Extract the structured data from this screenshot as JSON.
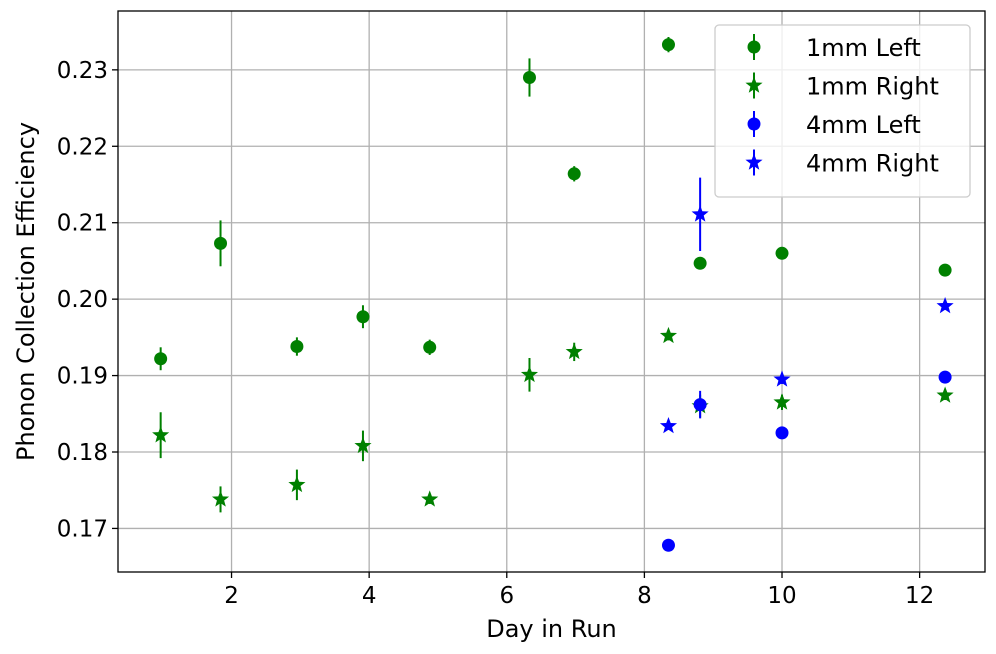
{
  "chart_data": {
    "type": "scatter",
    "title": "",
    "xlabel": "Day in Run",
    "ylabel": "Phonon Collection Efficiency",
    "xlim": [
      0.35,
      12.95
    ],
    "ylim": [
      0.1643,
      0.2377
    ],
    "xticks": [
      2,
      4,
      6,
      8,
      10,
      12
    ],
    "xtick_labels": [
      "2",
      "4",
      "6",
      "8",
      "10",
      "12"
    ],
    "yticks": [
      0.17,
      0.18,
      0.19,
      0.2,
      0.21,
      0.22,
      0.23
    ],
    "ytick_labels": [
      "0.17",
      "0.18",
      "0.19",
      "0.20",
      "0.21",
      "0.22",
      "0.23"
    ],
    "grid": true,
    "legend_position": "top-right",
    "series": [
      {
        "name": "1mm Left",
        "color": "#008000",
        "marker": "circle",
        "points": [
          {
            "x": 0.97,
            "y": 0.1922,
            "err": 0.0015
          },
          {
            "x": 1.84,
            "y": 0.2073,
            "err": 0.003
          },
          {
            "x": 2.95,
            "y": 0.1938,
            "err": 0.0012
          },
          {
            "x": 3.91,
            "y": 0.1977,
            "err": 0.0015
          },
          {
            "x": 4.88,
            "y": 0.1937,
            "err": 0.001
          },
          {
            "x": 6.33,
            "y": 0.229,
            "err": 0.0025
          },
          {
            "x": 6.98,
            "y": 0.2164,
            "err": 0.001
          },
          {
            "x": 8.35,
            "y": 0.2333,
            "err": 0.001
          },
          {
            "x": 8.81,
            "y": 0.2047,
            "err": 0.0004
          },
          {
            "x": 10.0,
            "y": 0.206,
            "err": 0.0006
          },
          {
            "x": 12.37,
            "y": 0.2038,
            "err": 0.0004
          }
        ]
      },
      {
        "name": "1mm Right",
        "color": "#008000",
        "marker": "star",
        "points": [
          {
            "x": 0.97,
            "y": 0.1822,
            "err": 0.003
          },
          {
            "x": 1.84,
            "y": 0.1738,
            "err": 0.0017
          },
          {
            "x": 2.95,
            "y": 0.1757,
            "err": 0.002
          },
          {
            "x": 3.91,
            "y": 0.1808,
            "err": 0.002
          },
          {
            "x": 4.88,
            "y": 0.1738,
            "err": 0.0006
          },
          {
            "x": 6.33,
            "y": 0.1901,
            "err": 0.0022
          },
          {
            "x": 6.98,
            "y": 0.1931,
            "err": 0.0012
          },
          {
            "x": 8.35,
            "y": 0.1952,
            "err": 0.0006
          },
          {
            "x": 8.81,
            "y": 0.186,
            "err": 0.0015
          },
          {
            "x": 10.0,
            "y": 0.1865,
            "err": 0.001
          },
          {
            "x": 12.37,
            "y": 0.1874,
            "err": 0.0006
          }
        ]
      },
      {
        "name": "4mm Left",
        "color": "#0000ff",
        "marker": "circle",
        "points": [
          {
            "x": 8.35,
            "y": 0.1678,
            "err": 0.0004
          },
          {
            "x": 8.81,
            "y": 0.1862,
            "err": 0.0018
          },
          {
            "x": 10.0,
            "y": 0.1825,
            "err": 0.0008
          },
          {
            "x": 12.37,
            "y": 0.1898,
            "err": 0.0005
          }
        ]
      },
      {
        "name": "4mm Right",
        "color": "#0000ff",
        "marker": "star",
        "points": [
          {
            "x": 8.35,
            "y": 0.1834,
            "err": 0.0005
          },
          {
            "x": 8.81,
            "y": 0.2111,
            "err": 0.0048
          },
          {
            "x": 10.0,
            "y": 0.1895,
            "err": 0.0006
          },
          {
            "x": 12.37,
            "y": 0.1991,
            "err": 0.0005
          }
        ]
      }
    ]
  }
}
